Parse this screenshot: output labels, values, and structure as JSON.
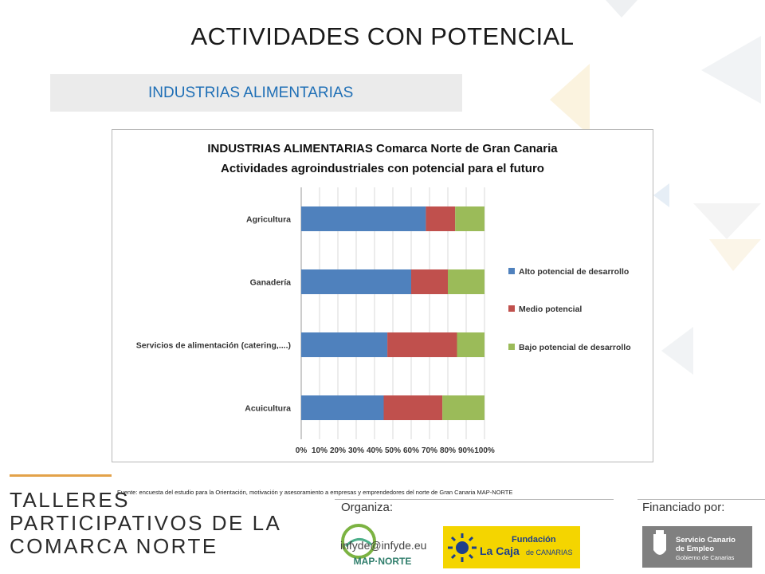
{
  "slide": {
    "title": "ACTIVIDADES CON POTENCIAL",
    "section": "INDUSTRIAS ALIMENTARIAS"
  },
  "chart_data": {
    "type": "bar",
    "orientation": "horizontal",
    "stacked": "percent",
    "title": "INDUSTRIAS ALIMENTARIAS Comarca Norte de Gran Canaria",
    "subtitle": "Actividades agroindustriales con potencial para el futuro",
    "xlabel": "",
    "ylabel": "",
    "categories": [
      "Agricultura",
      "Ganadería",
      "Servicios de alimentación (catering,....)",
      "Acuicultura"
    ],
    "series": [
      {
        "name": "Alto potencial de desarrollo",
        "color": "#4f81bd",
        "values": [
          68,
          60,
          47,
          45
        ]
      },
      {
        "name": "Medio potencial",
        "color": "#c0504d",
        "values": [
          16,
          20,
          38,
          32
        ]
      },
      {
        "name": "Bajo potencial de desarrollo",
        "color": "#9bbb59",
        "values": [
          16,
          20,
          15,
          23
        ]
      }
    ],
    "xlim": [
      0,
      100
    ],
    "xticks": [
      "0%",
      "10%",
      "20%",
      "30%",
      "40%",
      "50%",
      "60%",
      "70%",
      "80%",
      "90%",
      "100%"
    ],
    "grid": true,
    "legend_position": "right"
  },
  "source": "Fuente: encuesta del estudio para la Orientación, motivación y asesoramiento a empresas y emprendedores del norte de Gran Canaria MAP-NORTE",
  "footer": {
    "title_lines": [
      "TALLERES",
      "PARTICIPATIVOS DE LA",
      "COMARCA NORTE"
    ],
    "organiza": "Organiza:",
    "financiado": "Financiado por:",
    "email": "infyde@infyde.eu",
    "logo_map_text": "MAP·NORTE",
    "logo_caja_line1": "Fundación",
    "logo_caja_line2": "La Caja",
    "logo_caja_line3": "de CANARIAS",
    "logo_sce_line1": "Servicio Canario",
    "logo_sce_line2": "de Empleo",
    "logo_sce_line3": "Gobierno de Canarias"
  }
}
